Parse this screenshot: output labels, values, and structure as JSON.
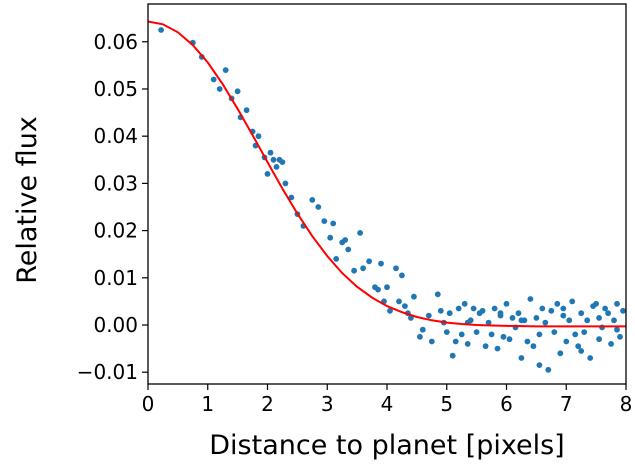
{
  "colors": {
    "points": "#1f77b4",
    "fit_line": "#ff0000",
    "axes": "#000000",
    "background": "#ffffff"
  },
  "chart_data": {
    "type": "scatter",
    "title": "",
    "xlabel": "Distance to planet [pixels]",
    "ylabel": "Relative flux",
    "xlim": [
      0,
      8
    ],
    "ylim": [
      -0.0125,
      0.068
    ],
    "xticks": [
      0,
      1,
      2,
      3,
      4,
      5,
      6,
      7,
      8
    ],
    "xtick_labels": [
      "0",
      "1",
      "2",
      "3",
      "4",
      "5",
      "6",
      "7",
      "8"
    ],
    "yticks": [
      -0.01,
      0.0,
      0.01,
      0.02,
      0.03,
      0.04,
      0.05,
      0.06
    ],
    "ytick_labels": [
      "−0.01",
      "0.00",
      "0.01",
      "0.02",
      "0.03",
      "0.04",
      "0.05",
      "0.06"
    ],
    "grid": false,
    "legend": false,
    "points": {
      "x": [
        0.22,
        0.75,
        0.9,
        1.1,
        1.2,
        1.3,
        1.4,
        1.55,
        1.65,
        1.75,
        1.8,
        1.85,
        1.95,
        2.0,
        2.1,
        2.15,
        2.2,
        2.3,
        2.4,
        2.5,
        2.6,
        2.75,
        2.85,
        2.95,
        3.05,
        3.1,
        3.15,
        3.25,
        3.3,
        3.35,
        3.45,
        3.55,
        3.6,
        3.7,
        3.8,
        3.85,
        3.95,
        4.0,
        4.05,
        4.15,
        4.2,
        4.3,
        4.35,
        4.45,
        4.6,
        4.7,
        4.75,
        4.85,
        4.9,
        4.95,
        5.0,
        5.05,
        5.1,
        5.2,
        5.25,
        5.3,
        5.35,
        5.4,
        5.45,
        5.5,
        5.55,
        5.6,
        5.65,
        5.7,
        5.75,
        5.8,
        5.85,
        5.9,
        5.95,
        6.0,
        6.05,
        6.1,
        6.15,
        6.2,
        6.25,
        6.3,
        6.35,
        6.4,
        6.45,
        6.5,
        6.55,
        6.6,
        6.65,
        6.7,
        6.75,
        6.8,
        6.85,
        6.9,
        6.95,
        7.0,
        7.05,
        7.1,
        7.15,
        7.2,
        7.25,
        7.3,
        7.35,
        7.4,
        7.45,
        7.5,
        7.55,
        7.6,
        7.65,
        7.7,
        7.75,
        7.8,
        7.85,
        7.9,
        7.95,
        4.25,
        4.4,
        4.55,
        5.15,
        5.35,
        5.9,
        6.25,
        6.55,
        6.95,
        7.25,
        7.55,
        7.85,
        3.9,
        2.05,
        2.25,
        1.5
      ],
      "y": [
        0.0625,
        0.0598,
        0.0568,
        0.052,
        0.05,
        0.054,
        0.048,
        0.044,
        0.0455,
        0.041,
        0.038,
        0.04,
        0.0355,
        0.032,
        0.035,
        0.0335,
        0.035,
        0.03,
        0.027,
        0.0235,
        0.021,
        0.0265,
        0.025,
        0.022,
        0.0185,
        0.0215,
        0.014,
        0.0175,
        0.018,
        0.016,
        0.0115,
        0.0195,
        0.012,
        0.0135,
        0.008,
        0.0075,
        0.005,
        0.008,
        0.003,
        0.012,
        0.005,
        0.004,
        0.0025,
        0.006,
        -0.001,
        0.002,
        -0.0035,
        0.0065,
        0.003,
        0.0005,
        -0.0015,
        0.0025,
        -0.0065,
        0.0035,
        -0.002,
        0.0045,
        -0.004,
        0.001,
        0.0035,
        -0.0015,
        0.0025,
        0.003,
        -0.0045,
        0.0005,
        -0.002,
        0.0035,
        -0.005,
        0.002,
        -0.0025,
        0.0045,
        -0.003,
        0.0015,
        -0.0005,
        0.0025,
        -0.007,
        0.001,
        -0.0035,
        0.0055,
        -0.0045,
        0.0015,
        -0.002,
        0.0035,
        0.0005,
        -0.0095,
        0.003,
        -0.0015,
        0.0045,
        -0.006,
        0.002,
        -0.0035,
        0.001,
        0.005,
        -0.002,
        -0.0045,
        0.0025,
        -0.0015,
        0.001,
        -0.007,
        0.004,
        0.0045,
        -0.003,
        -0.0005,
        0.0035,
        0.0025,
        -0.004,
        0.001,
        0.0045,
        -0.0025,
        0.003,
        0.0105,
        0.0015,
        -0.0025,
        -0.0035,
        0.0005,
        0.0025,
        0.001,
        -0.0085,
        0.0035,
        -0.0055,
        0.0015,
        -0.001,
        0.013,
        0.0365,
        0.0345,
        0.0495
      ]
    },
    "fit_line": {
      "x": [
        0,
        0.25,
        0.5,
        0.75,
        1.0,
        1.25,
        1.5,
        1.75,
        2.0,
        2.25,
        2.5,
        2.75,
        3.0,
        3.25,
        3.5,
        3.75,
        4.0,
        4.25,
        4.5,
        4.75,
        5.0,
        5.25,
        5.5,
        5.75,
        6.0,
        6.5,
        7.0,
        7.5,
        8.0
      ],
      "y": [
        0.0643,
        0.0637,
        0.062,
        0.0593,
        0.0556,
        0.051,
        0.0458,
        0.0402,
        0.0345,
        0.0289,
        0.0236,
        0.0188,
        0.0146,
        0.011,
        0.0081,
        0.0058,
        0.004,
        0.0027,
        0.0017,
        0.001,
        0.0005,
        0.0002,
        0.0,
        -0.0001,
        -0.0002,
        -0.0003,
        -0.0003,
        -0.0003,
        -0.0003
      ]
    }
  }
}
